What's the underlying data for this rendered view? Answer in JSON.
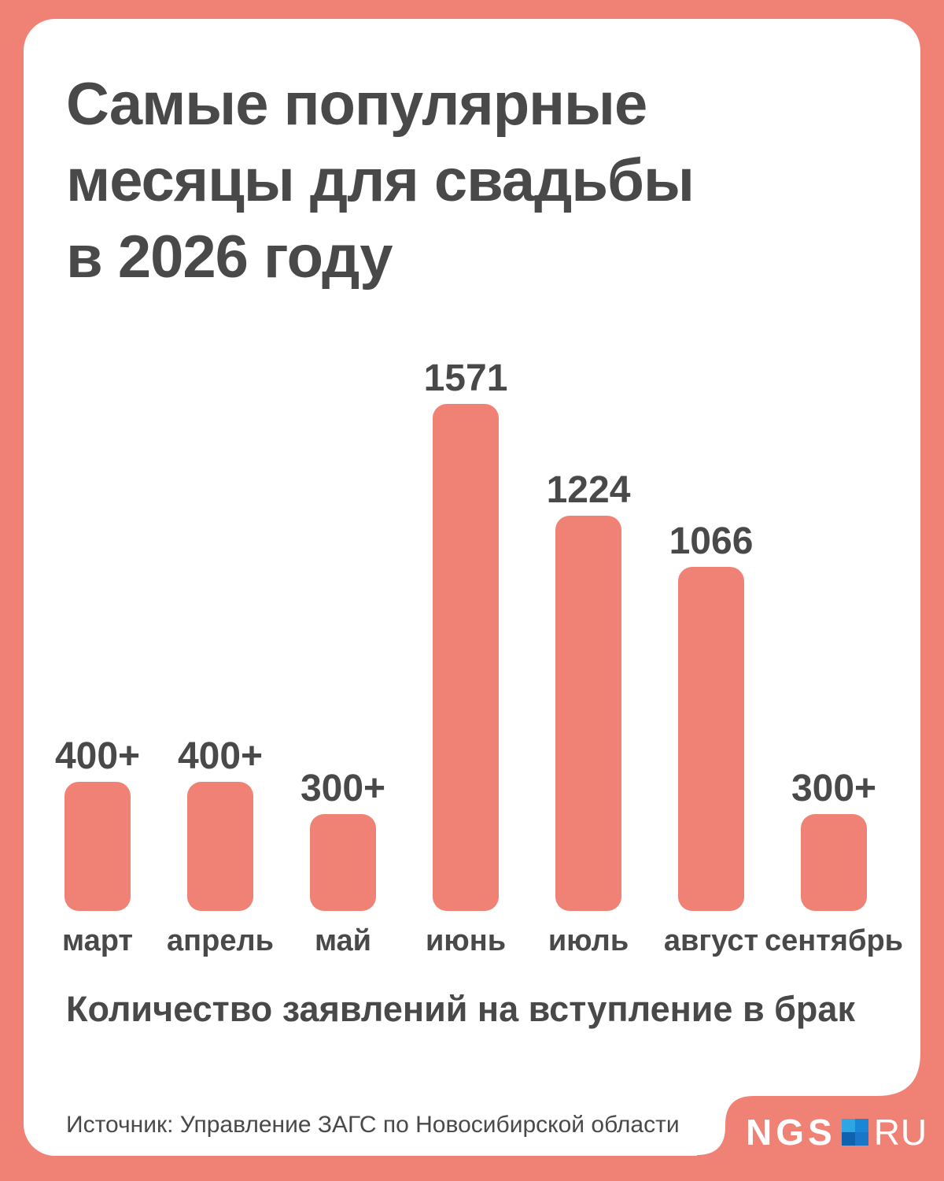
{
  "colors": {
    "accent": "#ef8175",
    "card": "#ffffff",
    "text": "#494949",
    "logo_square": {
      "top_left": "#2ea6e4",
      "top_right": "#1a86d6",
      "bottom_left": "#0f62ae",
      "bottom_right": "#1976c8"
    }
  },
  "header": {
    "title_lines": [
      "Самые популярные",
      "месяцы для свадьбы",
      "в 2026 году"
    ]
  },
  "chart": {
    "caption": "Количество заявлений на вступление в брак",
    "months": [
      {
        "label": "март",
        "display": "400+",
        "value": 400
      },
      {
        "label": "апрель",
        "display": "400+",
        "value": 400
      },
      {
        "label": "май",
        "display": "300+",
        "value": 300
      },
      {
        "label": "июнь",
        "display": "1571",
        "value": 1571
      },
      {
        "label": "июль",
        "display": "1224",
        "value": 1224
      },
      {
        "label": "август",
        "display": "1066",
        "value": 1066
      },
      {
        "label": "сентябрь",
        "display": "300+",
        "value": 300
      }
    ]
  },
  "footer": {
    "source": "Источник: Управление ЗАГС по Новосибирской области",
    "logo": {
      "ngs": "NGS",
      "ru": "RU"
    }
  },
  "chart_data": {
    "type": "bar",
    "title": "Самые популярные месяцы для свадьбы в 2026 году",
    "caption": "Количество заявлений на вступление в брак",
    "source": "Источник: Управление ЗАГС по Новосибирской области",
    "categories": [
      "март",
      "апрель",
      "май",
      "июнь",
      "июль",
      "август",
      "сентябрь"
    ],
    "values": [
      400,
      400,
      300,
      1571,
      1224,
      1066,
      300
    ],
    "display_values": [
      "400+",
      "400+",
      "300+",
      "1571",
      "1224",
      "1066",
      "300+"
    ],
    "xlabel": "",
    "ylabel": "Количество заявлений на вступление в брак",
    "ylim": [
      0,
      1571
    ],
    "grid": false,
    "legend": false,
    "bar_color": "#ef8175",
    "value_labels_position": "above bars"
  }
}
